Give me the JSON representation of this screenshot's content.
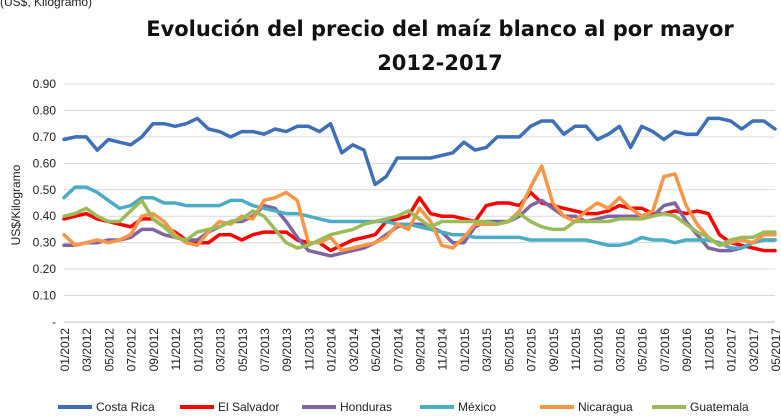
{
  "chart_data": {
    "type": "line",
    "subtitle": "(US$, Kilogramo)",
    "title": [
      "Evolución del precio del maíz blanco al por mayor",
      "2012-2017"
    ],
    "y_label": "US$/Kilogramo",
    "categories": [
      "01/2012",
      null,
      "03/2012",
      null,
      "05/2012",
      null,
      "07/2012",
      null,
      "09/2012",
      null,
      "11/2012",
      null,
      "01/2013",
      null,
      "03/2013",
      null,
      "05/2013",
      null,
      "07/2013",
      null,
      "09/2013",
      null,
      "11/2013",
      null,
      "01/2014",
      null,
      "03/2014",
      null,
      "05/2014",
      null,
      "07/2014",
      null,
      "09/2014",
      null,
      "11/2014",
      null,
      "01/2015",
      null,
      "03/2015",
      null,
      "05/2015",
      null,
      "07/2015",
      null,
      "09/2015",
      null,
      "11/2015",
      null,
      "01/2016",
      null,
      "03/2016",
      null,
      "05/2016",
      null,
      "07/2016",
      null,
      "09/2016",
      null,
      "11/2016",
      null,
      "01/2017",
      null,
      "03/2017",
      null,
      "05/2017"
    ],
    "ylim": [
      0,
      0.9
    ],
    "yticks": [
      {
        "value": 0,
        "label": "-"
      },
      {
        "value": 0.1,
        "label": "0.10"
      },
      {
        "value": 0.2,
        "label": "0.20"
      },
      {
        "value": 0.3,
        "label": "0.30"
      },
      {
        "value": 0.4,
        "label": "0.40"
      },
      {
        "value": 0.5,
        "label": "0.50"
      },
      {
        "value": 0.6,
        "label": "0.60"
      },
      {
        "value": 0.7,
        "label": "0.70"
      },
      {
        "value": 0.8,
        "label": "0.80"
      },
      {
        "value": 0.9,
        "label": "0.90"
      }
    ],
    "grid": true,
    "legend": "bottom",
    "series": [
      {
        "name": "Costa Rica",
        "color": "#3f6fb6",
        "values": [
          0.69,
          0.7,
          0.7,
          0.65,
          0.69,
          0.68,
          0.67,
          0.7,
          0.75,
          0.75,
          0.74,
          0.75,
          0.77,
          0.73,
          0.72,
          0.7,
          0.72,
          0.72,
          0.71,
          0.73,
          0.72,
          0.74,
          0.74,
          0.72,
          0.75,
          0.64,
          0.67,
          0.65,
          0.52,
          0.55,
          0.62,
          0.62,
          0.62,
          0.62,
          0.63,
          0.64,
          0.68,
          0.65,
          0.66,
          0.7,
          0.7,
          0.7,
          0.74,
          0.76,
          0.76,
          0.71,
          0.74,
          0.74,
          0.69,
          0.71,
          0.74,
          0.66,
          0.74,
          0.72,
          0.69,
          0.72,
          0.71,
          0.71,
          0.77,
          0.77,
          0.76,
          0.73,
          0.76,
          0.76,
          0.73
        ]
      },
      {
        "name": "El Salvador",
        "color": "#ff0000",
        "values": [
          0.39,
          0.4,
          0.41,
          0.39,
          0.38,
          0.37,
          0.36,
          0.39,
          0.39,
          0.36,
          0.34,
          0.31,
          0.3,
          0.3,
          0.33,
          0.33,
          0.31,
          0.33,
          0.34,
          0.34,
          0.34,
          0.31,
          0.3,
          0.3,
          0.27,
          0.29,
          0.31,
          0.32,
          0.33,
          0.38,
          0.39,
          0.4,
          0.47,
          0.41,
          0.4,
          0.4,
          0.39,
          0.38,
          0.44,
          0.45,
          0.45,
          0.44,
          0.49,
          0.45,
          0.44,
          0.43,
          0.42,
          0.41,
          0.41,
          0.42,
          0.44,
          0.43,
          0.43,
          0.41,
          0.41,
          0.42,
          0.41,
          0.42,
          0.41,
          0.33,
          0.3,
          0.29,
          0.28,
          0.27,
          0.27
        ]
      },
      {
        "name": "Honduras",
        "color": "#8064a2",
        "values": [
          0.29,
          0.29,
          0.3,
          0.3,
          0.31,
          0.31,
          0.32,
          0.35,
          0.35,
          0.33,
          0.32,
          0.31,
          0.31,
          0.34,
          0.36,
          0.38,
          0.38,
          0.4,
          0.44,
          0.43,
          0.38,
          0.32,
          0.27,
          0.26,
          0.25,
          0.26,
          0.27,
          0.28,
          0.3,
          0.33,
          0.36,
          0.37,
          0.37,
          0.36,
          0.34,
          0.3,
          0.3,
          0.36,
          0.38,
          0.38,
          0.38,
          0.4,
          0.44,
          0.46,
          0.43,
          0.4,
          0.4,
          0.38,
          0.39,
          0.4,
          0.4,
          0.4,
          0.4,
          0.4,
          0.44,
          0.45,
          0.38,
          0.33,
          0.28,
          0.27,
          0.27,
          0.28,
          0.3,
          0.31,
          0.31
        ]
      },
      {
        "name": "México",
        "color": "#4bacc6",
        "values": [
          0.47,
          0.51,
          0.51,
          0.49,
          0.46,
          0.43,
          0.44,
          0.47,
          0.47,
          0.45,
          0.45,
          0.44,
          0.44,
          0.44,
          0.44,
          0.46,
          0.46,
          0.44,
          0.43,
          0.42,
          0.41,
          0.41,
          0.4,
          0.39,
          0.38,
          0.38,
          0.38,
          0.38,
          0.38,
          0.38,
          0.37,
          0.37,
          0.36,
          0.35,
          0.34,
          0.33,
          0.33,
          0.32,
          0.32,
          0.32,
          0.32,
          0.32,
          0.31,
          0.31,
          0.31,
          0.31,
          0.31,
          0.31,
          0.3,
          0.29,
          0.29,
          0.3,
          0.32,
          0.31,
          0.31,
          0.3,
          0.31,
          0.31,
          0.31,
          0.3,
          0.28,
          0.28,
          0.3,
          0.31,
          0.31
        ]
      },
      {
        "name": "Nicaragua",
        "color": "#f79646",
        "values": [
          0.33,
          0.29,
          0.3,
          0.31,
          0.3,
          0.31,
          0.33,
          0.4,
          0.41,
          0.38,
          0.33,
          0.3,
          0.29,
          0.34,
          0.38,
          0.37,
          0.4,
          0.39,
          0.46,
          0.47,
          0.49,
          0.46,
          0.3,
          0.3,
          0.32,
          0.27,
          0.28,
          0.29,
          0.3,
          0.32,
          0.37,
          0.35,
          0.43,
          0.38,
          0.29,
          0.28,
          0.32,
          0.37,
          0.37,
          0.37,
          0.38,
          0.42,
          0.51,
          0.59,
          0.45,
          0.4,
          0.38,
          0.42,
          0.45,
          0.43,
          0.47,
          0.43,
          0.4,
          0.42,
          0.55,
          0.56,
          0.44,
          0.37,
          0.32,
          0.29,
          0.3,
          0.31,
          0.3,
          0.33,
          0.33
        ]
      },
      {
        "name": "Guatemala",
        "color": "#9bbb59",
        "values": [
          0.4,
          0.41,
          0.43,
          0.4,
          0.38,
          0.38,
          0.42,
          0.46,
          0.39,
          0.36,
          0.32,
          0.31,
          0.34,
          0.35,
          0.36,
          0.38,
          0.39,
          0.42,
          0.4,
          0.35,
          0.3,
          0.28,
          0.29,
          0.31,
          0.33,
          0.34,
          0.35,
          0.37,
          0.38,
          0.39,
          0.4,
          0.42,
          0.39,
          0.36,
          0.38,
          0.38,
          0.38,
          0.38,
          0.38,
          0.37,
          0.38,
          0.41,
          0.38,
          0.36,
          0.35,
          0.35,
          0.38,
          0.38,
          0.38,
          0.38,
          0.39,
          0.39,
          0.39,
          0.4,
          0.41,
          0.4,
          0.37,
          0.34,
          0.32,
          0.29,
          0.31,
          0.32,
          0.32,
          0.34,
          0.34
        ]
      }
    ]
  }
}
